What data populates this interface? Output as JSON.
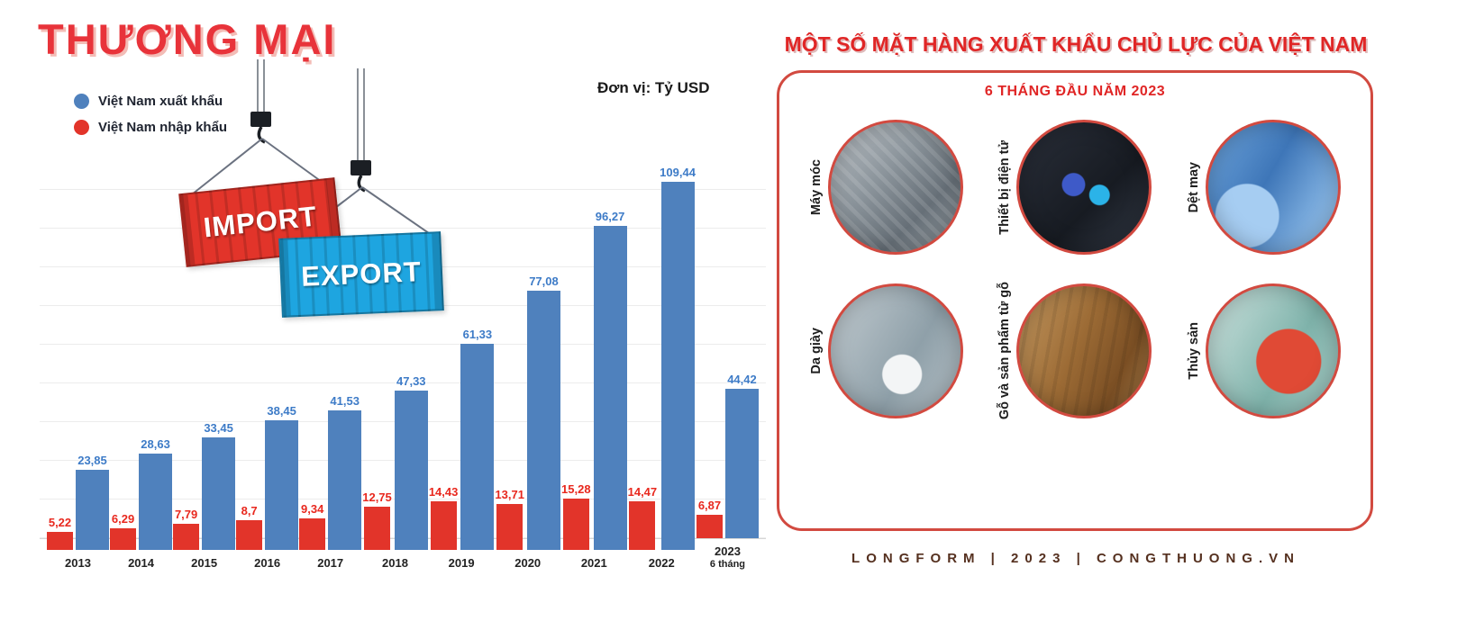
{
  "left": {
    "title": "THƯƠNG MẠI",
    "unit_label": "Đơn vị: Tỷ USD",
    "import_label": "IMPORT",
    "export_label": "EXPORT"
  },
  "chart_data": {
    "type": "bar",
    "title": "THƯƠNG MẠI",
    "unit": "Tỷ USD",
    "categories": [
      "2013",
      "2014",
      "2015",
      "2016",
      "2017",
      "2018",
      "2019",
      "2020",
      "2021",
      "2022",
      "2023"
    ],
    "last_category_note": "6 tháng",
    "ylim": [
      0,
      115
    ],
    "grid": true,
    "legend_position": "top-left",
    "series": [
      {
        "name": "Việt Nam xuất khẩu",
        "color": "#4f81bd",
        "label_color": "#3d7bc7",
        "values": [
          23.85,
          28.63,
          33.45,
          38.45,
          41.53,
          47.33,
          61.33,
          77.08,
          96.27,
          109.44,
          44.42
        ],
        "labels": [
          "23,85",
          "28,63",
          "33,45",
          "38,45",
          "41,53",
          "47,33",
          "61,33",
          "77,08",
          "96,27",
          "109,44",
          "44,42"
        ]
      },
      {
        "name": "Việt Nam nhập khẩu",
        "color": "#e2342a",
        "label_color": "#e8281e",
        "values": [
          5.22,
          6.29,
          7.79,
          8.7,
          9.34,
          12.75,
          14.43,
          13.71,
          15.28,
          14.47,
          6.87
        ],
        "labels": [
          "5,22",
          "6,29",
          "7,79",
          "8,7",
          "9,34",
          "12,75",
          "14,43",
          "13,71",
          "15,28",
          "14,47",
          "6,87"
        ]
      }
    ]
  },
  "right": {
    "title": "MỘT SỐ MẶT HÀNG XUẤT KHẨU CHỦ LỰC CỦA VIỆT NAM",
    "subtitle": "6 THÁNG ĐẦU NĂM 2023",
    "items": [
      {
        "label": "Máy móc",
        "photo": "machinery-photo"
      },
      {
        "label": "Thiết bị điện tử",
        "photo": "electronics-photo"
      },
      {
        "label": "Dệt may",
        "photo": "textiles-photo"
      },
      {
        "label": "Da giày",
        "photo": "footwear-photo"
      },
      {
        "label": "Gỗ và sản phẩm từ gỗ",
        "photo": "wood-products-photo"
      },
      {
        "label": "Thủy sản",
        "photo": "seafood-photo"
      }
    ],
    "footer": "LONGFORM | 2023 | CONGTHUONG.VN"
  },
  "colors": {
    "export_blue": "#4f81bd",
    "import_red": "#e2342a",
    "panel_border": "#d24a40",
    "title_red": "#e8333a",
    "footer_brown": "#55301f"
  }
}
